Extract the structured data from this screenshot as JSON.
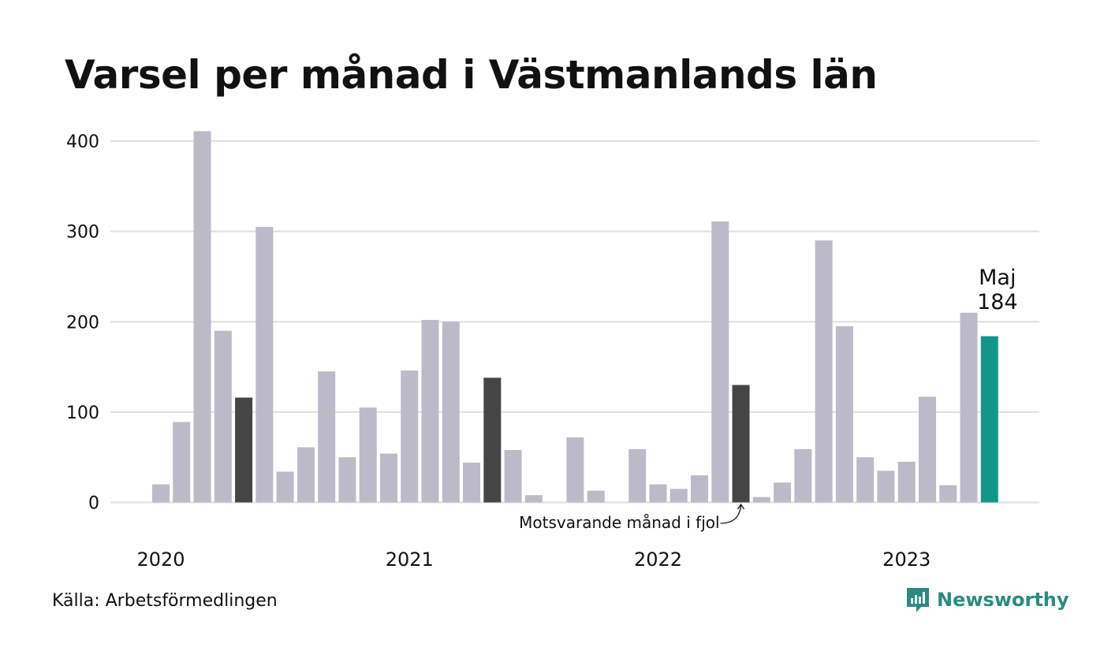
{
  "title": "Varsel per månad i Västmanlands län",
  "source": "Källa: Arbetsförmedlingen",
  "brand": {
    "name": "Newsworthy",
    "icon": "newsworthy-logo-icon"
  },
  "colors": {
    "bar": "#bcbac8",
    "same_month_last_year": "#454545",
    "current": "#12968a",
    "grid": "#e2e2e2",
    "brand": "#2a8b80"
  },
  "chart_data": {
    "type": "bar",
    "title": "Varsel per månad i Västmanlands län",
    "xlabel": "",
    "ylabel": "",
    "ylim": [
      0,
      400
    ],
    "yticks": [
      0,
      100,
      200,
      300,
      400
    ],
    "grid": true,
    "x_tick_labels": [
      "2020",
      "2021",
      "2022",
      "2023"
    ],
    "categories": [
      "2020-01",
      "2020-02",
      "2020-03",
      "2020-04",
      "2020-05",
      "2020-06",
      "2020-07",
      "2020-08",
      "2020-09",
      "2020-10",
      "2020-11",
      "2020-12",
      "2021-01",
      "2021-02",
      "2021-03",
      "2021-04",
      "2021-05",
      "2021-06",
      "2021-07",
      "2021-08",
      "2021-09",
      "2021-10",
      "2021-11",
      "2021-12",
      "2022-01",
      "2022-02",
      "2022-03",
      "2022-04",
      "2022-05",
      "2022-06",
      "2022-07",
      "2022-08",
      "2022-09",
      "2022-10",
      "2022-11",
      "2022-12",
      "2023-01",
      "2023-02",
      "2023-03",
      "2023-04",
      "2023-05"
    ],
    "values": [
      20,
      89,
      411,
      190,
      116,
      305,
      34,
      61,
      145,
      50,
      105,
      54,
      146,
      202,
      200,
      44,
      138,
      58,
      8,
      0,
      72,
      13,
      0,
      59,
      20,
      15,
      30,
      311,
      130,
      6,
      22,
      59,
      290,
      195,
      50,
      35,
      45,
      117,
      19,
      210,
      184
    ],
    "highlight": {
      "same_month_last_year": [
        "2020-05",
        "2021-05",
        "2022-05"
      ],
      "current": "2023-05"
    },
    "annotations": [
      {
        "text": "Motsvarande månad i fjol",
        "target": "2022-05"
      },
      {
        "text": "Maj",
        "target": "2023-05"
      },
      {
        "text": "184",
        "target": "2023-05"
      }
    ]
  }
}
